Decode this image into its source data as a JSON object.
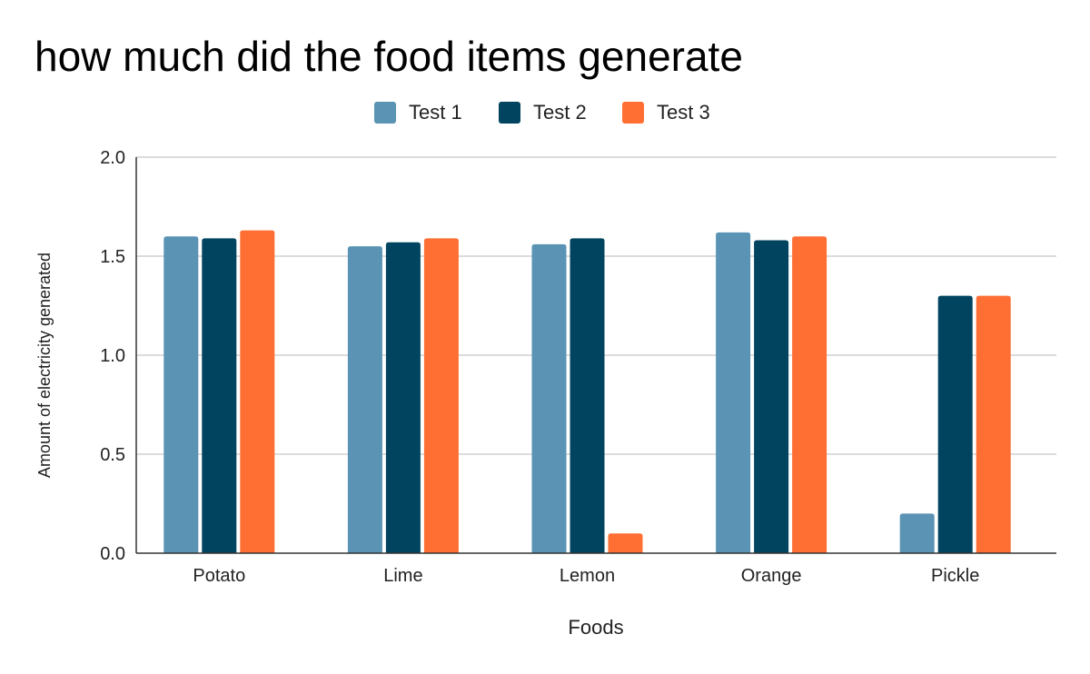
{
  "chart_data": {
    "type": "bar",
    "title": "how much did the food items generate",
    "xlabel": "Foods",
    "ylabel": "Amount of electricity generated",
    "categories": [
      "Potato",
      "Lime",
      "Lemon",
      "Orange",
      "Pickle"
    ],
    "series": [
      {
        "name": "Test 1",
        "color": "#5a93b3",
        "values": [
          1.6,
          1.55,
          1.56,
          1.62,
          0.2
        ]
      },
      {
        "name": "Test 2",
        "color": "#00445f",
        "values": [
          1.59,
          1.57,
          1.59,
          1.58,
          1.3
        ]
      },
      {
        "name": "Test 3",
        "color": "#ff6f33",
        "values": [
          1.63,
          1.59,
          0.1,
          1.6,
          1.3
        ]
      }
    ],
    "ylim": [
      0,
      2.0
    ],
    "yticks": [
      "0.0",
      "0.5",
      "1.0",
      "1.5",
      "2.0"
    ],
    "grid": true,
    "legend_position": "top-center"
  }
}
